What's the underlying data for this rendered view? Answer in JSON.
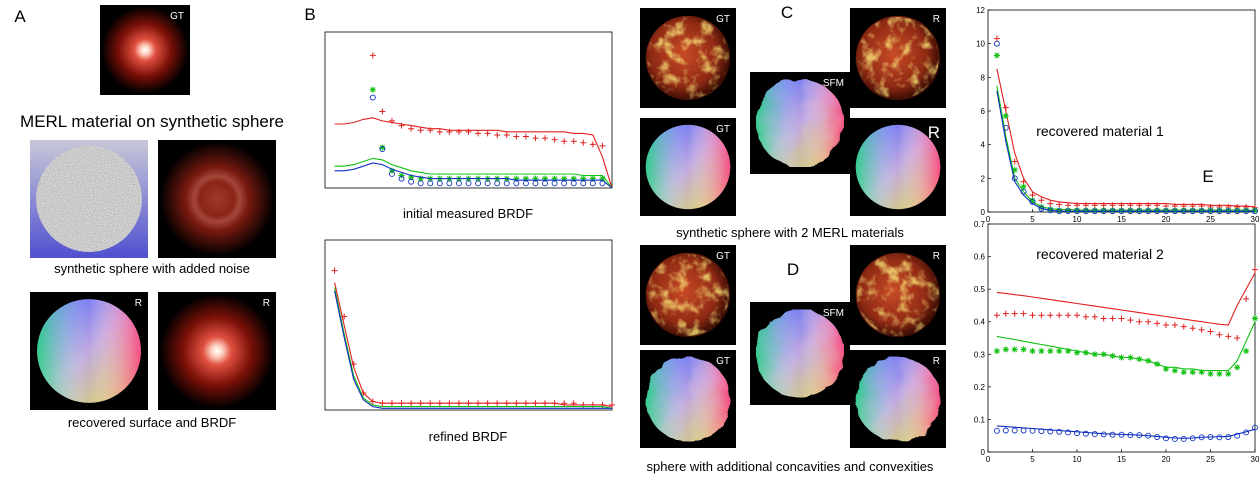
{
  "panel_labels": [
    "A",
    "B",
    "C",
    "D",
    "E"
  ],
  "captions": [
    "MERL material on synthetic sphere",
    "synthetic sphere with added noise",
    "recovered surface and BRDF",
    "initial measured BRDF",
    "refined BRDF",
    "synthetic sphere with 2 MERL materials",
    "sphere with additional concavities and convexities"
  ],
  "image_tags": [
    "GT",
    "R",
    "R",
    "GT",
    "R",
    "SFM",
    "GT",
    "R",
    "GT",
    "R",
    "SFM",
    "GT",
    "R"
  ],
  "chart_data": [
    {
      "type": "line",
      "xlim": [
        0,
        30
      ],
      "ylim": [
        0,
        1
      ],
      "x": [
        1,
        2,
        3,
        4,
        5,
        6,
        7,
        8,
        9,
        10,
        11,
        12,
        13,
        14,
        15,
        16,
        17,
        18,
        19,
        20,
        21,
        22,
        23,
        24,
        25,
        26,
        27,
        28,
        29,
        30
      ],
      "series": [
        {
          "color": "#e02020",
          "marker": "line",
          "values": [
            0.41,
            0.41,
            0.42,
            0.44,
            0.45,
            0.43,
            0.42,
            0.41,
            0.4,
            0.39,
            0.38,
            0.38,
            0.37,
            0.37,
            0.37,
            0.37,
            0.37,
            0.37,
            0.36,
            0.36,
            0.36,
            0.36,
            0.36,
            0.36,
            0.36,
            0.35,
            0.35,
            0.34,
            0.2,
            0.0
          ]
        },
        {
          "color": "#e02020",
          "marker": "+",
          "values": [
            null,
            null,
            null,
            null,
            0.85,
            0.49,
            0.43,
            0.4,
            0.38,
            0.37,
            0.37,
            0.36,
            0.36,
            0.36,
            0.36,
            0.35,
            0.35,
            0.34,
            0.34,
            0.33,
            0.33,
            0.32,
            0.32,
            0.31,
            0.3,
            0.3,
            0.29,
            0.28,
            0.27,
            null
          ]
        },
        {
          "color": "#10c010",
          "marker": "line",
          "values": [
            0.14,
            0.14,
            0.15,
            0.17,
            0.19,
            0.18,
            0.15,
            0.13,
            0.11,
            0.1,
            0.09,
            0.09,
            0.09,
            0.09,
            0.09,
            0.09,
            0.09,
            0.09,
            0.09,
            0.09,
            0.09,
            0.09,
            0.09,
            0.09,
            0.09,
            0.09,
            0.08,
            0.08,
            0.08,
            0.0
          ]
        },
        {
          "color": "#10c010",
          "marker": "*",
          "values": [
            null,
            null,
            null,
            null,
            0.63,
            0.26,
            0.11,
            0.08,
            0.07,
            0.06,
            0.06,
            0.06,
            0.06,
            0.06,
            0.06,
            0.06,
            0.06,
            0.06,
            0.06,
            0.06,
            0.06,
            0.06,
            0.06,
            0.06,
            0.06,
            0.06,
            0.06,
            0.06,
            0.06,
            null
          ]
        },
        {
          "color": "#1030c0",
          "marker": "line",
          "values": [
            0.11,
            0.11,
            0.12,
            0.14,
            0.16,
            0.15,
            0.12,
            0.1,
            0.08,
            0.07,
            0.06,
            0.06,
            0.06,
            0.06,
            0.06,
            0.06,
            0.06,
            0.06,
            0.06,
            0.05,
            0.05,
            0.05,
            0.05,
            0.05,
            0.05,
            0.05,
            0.05,
            0.05,
            0.05,
            0.0
          ]
        },
        {
          "color": "#1030c0",
          "marker": "o",
          "values": [
            null,
            null,
            null,
            null,
            0.58,
            0.25,
            0.09,
            0.06,
            0.04,
            0.03,
            0.03,
            0.03,
            0.03,
            0.03,
            0.03,
            0.03,
            0.03,
            0.03,
            0.03,
            0.03,
            0.03,
            0.03,
            0.03,
            0.03,
            0.03,
            0.03,
            0.03,
            0.03,
            0.03,
            null
          ]
        }
      ]
    },
    {
      "type": "line",
      "xlim": [
        0,
        30
      ],
      "ylim": [
        0,
        1
      ],
      "x": [
        1,
        2,
        3,
        4,
        5,
        6,
        7,
        8,
        9,
        10,
        11,
        12,
        13,
        14,
        15,
        16,
        17,
        18,
        19,
        20,
        21,
        22,
        23,
        24,
        25,
        26,
        27,
        28,
        29,
        30
      ],
      "series": [
        {
          "color": "#e02020",
          "marker": "line",
          "values": [
            0.75,
            0.5,
            0.25,
            0.1,
            0.05,
            0.04,
            0.04,
            0.04,
            0.04,
            0.04,
            0.04,
            0.04,
            0.04,
            0.04,
            0.04,
            0.04,
            0.04,
            0.04,
            0.04,
            0.04,
            0.04,
            0.04,
            0.04,
            0.04,
            0.03,
            0.03,
            0.03,
            0.03,
            0.03,
            0.02
          ]
        },
        {
          "color": "#e02020",
          "marker": "+",
          "values": [
            0.82,
            0.55,
            0.27,
            0.1,
            0.05,
            0.04,
            0.04,
            0.04,
            0.04,
            0.04,
            0.04,
            0.04,
            0.04,
            0.04,
            0.04,
            0.04,
            0.04,
            0.04,
            0.04,
            0.04,
            0.04,
            0.04,
            0.04,
            0.04,
            0.04,
            0.04,
            0.03,
            0.03,
            0.03,
            0.03
          ]
        },
        {
          "color": "#10c010",
          "marker": "line",
          "values": [
            0.72,
            0.45,
            0.2,
            0.07,
            0.03,
            0.02,
            0.02,
            0.02,
            0.02,
            0.02,
            0.02,
            0.02,
            0.02,
            0.02,
            0.02,
            0.02,
            0.02,
            0.02,
            0.02,
            0.02,
            0.02,
            0.02,
            0.02,
            0.02,
            0.02,
            0.02,
            0.02,
            0.02,
            0.02,
            0.01
          ]
        },
        {
          "color": "#1030c0",
          "marker": "line",
          "values": [
            0.7,
            0.43,
            0.18,
            0.06,
            0.02,
            0.01,
            0.01,
            0.01,
            0.01,
            0.01,
            0.01,
            0.01,
            0.01,
            0.01,
            0.01,
            0.01,
            0.01,
            0.01,
            0.01,
            0.01,
            0.01,
            0.01,
            0.01,
            0.01,
            0.01,
            0.01,
            0.01,
            0.01,
            0.01,
            0.01
          ]
        }
      ]
    },
    {
      "type": "line",
      "annotation": "recovered material 1",
      "xlim": [
        0,
        30
      ],
      "ylim": [
        0,
        12
      ],
      "xticks": [
        0,
        5,
        10,
        15,
        20,
        25,
        30
      ],
      "yticks": [
        0,
        2,
        4,
        6,
        8,
        10,
        12
      ],
      "x": [
        1,
        2,
        3,
        4,
        5,
        6,
        7,
        8,
        9,
        10,
        11,
        12,
        13,
        14,
        15,
        16,
        17,
        18,
        19,
        20,
        21,
        22,
        23,
        24,
        25,
        26,
        27,
        28,
        29,
        30
      ],
      "series": [
        {
          "color": "#e02020",
          "marker": "line",
          "values": [
            8.5,
            6.0,
            3.5,
            2.0,
            1.2,
            0.9,
            0.7,
            0.6,
            0.55,
            0.5,
            0.5,
            0.5,
            0.5,
            0.5,
            0.5,
            0.5,
            0.5,
            0.5,
            0.5,
            0.5,
            0.45,
            0.45,
            0.45,
            0.45,
            0.4,
            0.4,
            0.4,
            0.35,
            0.35,
            0.3
          ]
        },
        {
          "color": "#e02020",
          "marker": "+",
          "values": [
            10.3,
            6.2,
            3.0,
            1.8,
            1.0,
            0.7,
            0.5,
            0.45,
            0.4,
            0.4,
            0.4,
            0.4,
            0.4,
            0.4,
            0.4,
            0.4,
            0.4,
            0.4,
            0.4,
            0.35,
            0.35,
            0.35,
            0.35,
            0.35,
            0.3,
            0.3,
            0.3,
            0.3,
            0.3,
            0.25
          ]
        },
        {
          "color": "#10c010",
          "marker": "line",
          "values": [
            7.5,
            4.5,
            2.0,
            1.2,
            0.6,
            0.3,
            0.2,
            0.15,
            0.15,
            0.12,
            0.12,
            0.12,
            0.12,
            0.12,
            0.12,
            0.12,
            0.12,
            0.12,
            0.12,
            0.12,
            0.12,
            0.12,
            0.12,
            0.12,
            0.12,
            0.12,
            0.12,
            0.12,
            0.12,
            0.1
          ]
        },
        {
          "color": "#10c010",
          "marker": "*",
          "values": [
            9.3,
            5.7,
            2.5,
            1.5,
            0.7,
            0.3,
            0.15,
            0.1,
            0.1,
            0.1,
            0.1,
            0.1,
            0.1,
            0.1,
            0.1,
            0.1,
            0.1,
            0.1,
            0.1,
            0.1,
            0.1,
            0.1,
            0.1,
            0.1,
            0.1,
            0.1,
            0.1,
            0.1,
            0.1,
            0.1
          ]
        },
        {
          "color": "#1030c0",
          "marker": "line",
          "values": [
            7.2,
            4.2,
            1.8,
            1.0,
            0.5,
            0.2,
            0.1,
            0.05,
            0.05,
            0.05,
            0.05,
            0.05,
            0.05,
            0.05,
            0.05,
            0.05,
            0.05,
            0.05,
            0.05,
            0.05,
            0.05,
            0.05,
            0.05,
            0.05,
            0.05,
            0.05,
            0.05,
            0.05,
            0.05,
            0.05
          ]
        },
        {
          "color": "#1030c0",
          "marker": "o",
          "values": [
            10.0,
            5.0,
            2.0,
            1.2,
            0.6,
            0.2,
            0.1,
            0.05,
            0.05,
            0.05,
            0.05,
            0.05,
            0.05,
            0.05,
            0.05,
            0.05,
            0.05,
            0.05,
            0.05,
            0.05,
            0.05,
            0.05,
            0.05,
            0.05,
            0.05,
            0.05,
            0.05,
            0.05,
            0.05,
            0.05
          ]
        }
      ]
    },
    {
      "type": "line",
      "annotation": "recovered material 2",
      "xlim": [
        0,
        30
      ],
      "ylim": [
        0,
        0.7
      ],
      "xticks": [
        0,
        5,
        10,
        15,
        20,
        25,
        30
      ],
      "yticks": [
        0,
        0.1,
        0.2,
        0.3,
        0.4,
        0.5,
        0.6,
        0.7
      ],
      "x": [
        1,
        2,
        3,
        4,
        5,
        6,
        7,
        8,
        9,
        10,
        11,
        12,
        13,
        14,
        15,
        16,
        17,
        18,
        19,
        20,
        21,
        22,
        23,
        24,
        25,
        26,
        27,
        28,
        29,
        30
      ],
      "series": [
        {
          "color": "#e02020",
          "marker": "line",
          "values": [
            0.49,
            0.487,
            0.483,
            0.48,
            0.476,
            0.472,
            0.468,
            0.464,
            0.46,
            0.456,
            0.452,
            0.448,
            0.444,
            0.44,
            0.436,
            0.432,
            0.428,
            0.424,
            0.42,
            0.416,
            0.412,
            0.408,
            0.404,
            0.4,
            0.396,
            0.392,
            0.39,
            0.45,
            0.5,
            0.55
          ]
        },
        {
          "color": "#e02020",
          "marker": "+",
          "values": [
            0.42,
            0.425,
            0.425,
            0.425,
            0.42,
            0.42,
            0.42,
            0.42,
            0.42,
            0.42,
            0.415,
            0.415,
            0.41,
            0.41,
            0.41,
            0.405,
            0.4,
            0.4,
            0.395,
            0.39,
            0.39,
            0.385,
            0.38,
            0.375,
            0.37,
            0.36,
            0.355,
            0.35,
            0.47,
            0.56
          ]
        },
        {
          "color": "#10c010",
          "marker": "line",
          "values": [
            0.355,
            0.35,
            0.345,
            0.34,
            0.335,
            0.33,
            0.325,
            0.32,
            0.315,
            0.31,
            0.305,
            0.3,
            0.3,
            0.295,
            0.29,
            0.29,
            0.285,
            0.28,
            0.27,
            0.26,
            0.26,
            0.255,
            0.255,
            0.25,
            0.25,
            0.25,
            0.25,
            0.28,
            0.34,
            0.4
          ]
        },
        {
          "color": "#10c010",
          "marker": "*",
          "values": [
            0.31,
            0.315,
            0.315,
            0.315,
            0.31,
            0.31,
            0.31,
            0.31,
            0.31,
            0.305,
            0.305,
            0.3,
            0.3,
            0.295,
            0.29,
            0.29,
            0.285,
            0.28,
            0.27,
            0.255,
            0.25,
            0.245,
            0.245,
            0.245,
            0.24,
            0.24,
            0.24,
            0.26,
            0.31,
            0.41
          ]
        },
        {
          "color": "#1030c0",
          "marker": "line",
          "values": [
            0.08,
            0.078,
            0.076,
            0.074,
            0.072,
            0.07,
            0.068,
            0.066,
            0.064,
            0.062,
            0.06,
            0.058,
            0.056,
            0.055,
            0.054,
            0.053,
            0.052,
            0.05,
            0.048,
            0.045,
            0.043,
            0.042,
            0.043,
            0.045,
            0.046,
            0.047,
            0.048,
            0.055,
            0.062,
            0.07
          ]
        },
        {
          "color": "#1030c0",
          "marker": "o",
          "values": [
            0.065,
            0.066,
            0.066,
            0.066,
            0.065,
            0.064,
            0.063,
            0.062,
            0.06,
            0.058,
            0.056,
            0.055,
            0.054,
            0.053,
            0.053,
            0.052,
            0.052,
            0.05,
            0.046,
            0.042,
            0.04,
            0.04,
            0.042,
            0.045,
            0.046,
            0.045,
            0.046,
            0.05,
            0.06,
            0.075
          ]
        }
      ]
    }
  ]
}
